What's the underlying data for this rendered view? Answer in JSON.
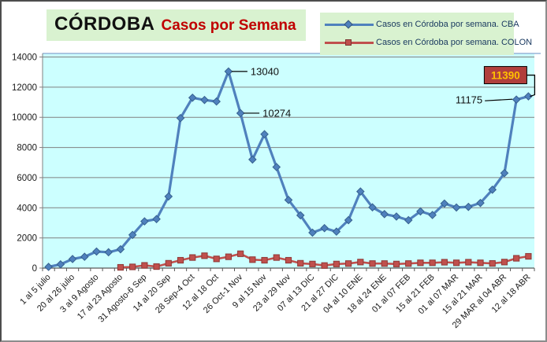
{
  "header": {
    "title_main": "CÓRDOBA",
    "title_sub": "Casos por Semana"
  },
  "legend": {
    "position": "top-right",
    "items": [
      {
        "label": "Casos en Córdoba por semana. CBA",
        "marker": "diamond",
        "color": "#4F81BD"
      },
      {
        "label": "Casos en Córdoba por semana. COLON",
        "marker": "square",
        "color": "#C0504D"
      }
    ]
  },
  "chart_data": {
    "type": "line",
    "title": "CÓRDOBA Casos por Semana",
    "note": "41 weekly data points; x-axis tick labels shown every second week",
    "x_tick_labels": [
      "1 al 5 julio",
      "20 al 26 julio",
      "3 al 9 Agosto",
      "17 al 23 Agosto",
      "31 Agosto-6 Sep",
      "14 al 20 Sep",
      "28 Sep-4 Oct",
      "12 al 18 Oct",
      "26 Oct-1 Nov",
      "9 al 15 Nov",
      "23 al 29 Nov",
      "07 al 13 DIC",
      "21 al 27 DIC",
      "04 al 10 ENE",
      "18 al 24 ENE",
      "01 al 07 FEB",
      "15 al 21 FEB",
      "01 al 07 MAR",
      "15 al 21 MAR",
      "29 MAR al 04 ABR",
      "12 al 18 ABR"
    ],
    "y_axis": {
      "min": 0,
      "max": 14000,
      "step": 2000,
      "tick_labels": [
        "0",
        "2000",
        "4000",
        "6000",
        "8000",
        "10000",
        "12000",
        "14000"
      ]
    },
    "series": [
      {
        "name": "Casos en Córdoba por semana. CBA",
        "color": "#4F81BD",
        "marker": "diamond",
        "marker_edge": "#36618F",
        "line_width": 3.2,
        "values": [
          80,
          250,
          600,
          750,
          1100,
          1050,
          1250,
          2200,
          3100,
          3250,
          4750,
          9950,
          11300,
          11150,
          11050,
          13040,
          10274,
          7200,
          8880,
          6700,
          4520,
          3500,
          2350,
          2650,
          2420,
          3180,
          5080,
          4030,
          3580,
          3420,
          3180,
          3760,
          3520,
          4280,
          4020,
          4060,
          4320,
          5200,
          6300,
          11175,
          11390
        ]
      },
      {
        "name": "Casos en Córdoba por semana. COLON",
        "color": "#C0504D",
        "marker": "square",
        "marker_edge": "#8E3836",
        "line_width": 2.6,
        "values": [
          null,
          null,
          null,
          null,
          null,
          null,
          50,
          80,
          180,
          100,
          320,
          520,
          700,
          820,
          610,
          750,
          950,
          560,
          520,
          700,
          520,
          320,
          270,
          170,
          270,
          300,
          400,
          300,
          300,
          270,
          300,
          350,
          350,
          390,
          350,
          390,
          350,
          310,
          400,
          650,
          780
        ]
      }
    ],
    "annotations": [
      {
        "text": "13040",
        "series": 0,
        "index": 15,
        "placement": "right"
      },
      {
        "text": "10274",
        "series": 0,
        "index": 16,
        "placement": "right"
      },
      {
        "text": "11175",
        "series": 0,
        "index": 39,
        "placement": "left"
      },
      {
        "text": "11390",
        "series": 0,
        "index": 40,
        "placement": "boxed",
        "box_fill": "#B13F3C",
        "box_border": "#000000",
        "text_color": "#FFC000"
      }
    ],
    "colors": {
      "plot_bg": "#CCFFFF",
      "grid": "#808080",
      "axis": "#595959",
      "plot_top_border": "#95B3D7",
      "panel_bg": "#D9F2D0",
      "title_red": "#C00000",
      "legend_text": "#17375E",
      "tick_text": "#1a1a1a"
    },
    "grid": true,
    "legend_position": "top-right"
  }
}
